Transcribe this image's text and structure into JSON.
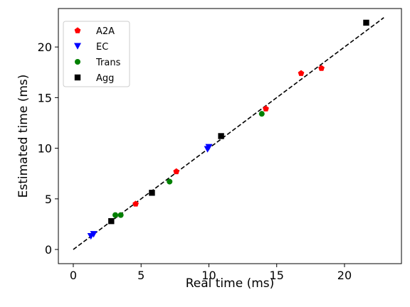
{
  "chart_data": {
    "type": "scatter",
    "title": "",
    "xlabel": "Real time (ms)",
    "ylabel": "Estimated time (ms)",
    "xlim": [
      -1.1,
      24.2
    ],
    "ylim": [
      -1.4,
      23.8
    ],
    "xticks": [
      0,
      5,
      10,
      15,
      20
    ],
    "yticks": [
      0,
      5,
      10,
      15,
      20
    ],
    "grid": false,
    "legend_position": "top-left",
    "reference_line": {
      "style": "dashed",
      "color": "#000000",
      "x": [
        0,
        22.9
      ],
      "y": [
        0,
        22.9
      ]
    },
    "series": [
      {
        "name": "A2A",
        "marker": "pentagon",
        "color": "#ff0000",
        "points": [
          [
            4.6,
            4.5
          ],
          [
            7.6,
            7.7
          ],
          [
            14.2,
            13.9
          ],
          [
            16.8,
            17.4
          ],
          [
            18.3,
            17.9
          ]
        ]
      },
      {
        "name": "EC",
        "marker": "triangle-down",
        "color": "#0000ff",
        "points": [
          [
            1.3,
            1.3
          ],
          [
            1.5,
            1.5
          ],
          [
            9.9,
            9.9
          ],
          [
            10.0,
            10.1
          ]
        ]
      },
      {
        "name": "Trans",
        "marker": "circle",
        "color": "#008000",
        "points": [
          [
            3.1,
            3.4
          ],
          [
            3.5,
            3.4
          ],
          [
            7.1,
            6.7
          ],
          [
            13.9,
            13.4
          ]
        ]
      },
      {
        "name": "Agg",
        "marker": "square",
        "color": "#000000",
        "points": [
          [
            2.8,
            2.8
          ],
          [
            5.8,
            5.6
          ],
          [
            10.9,
            11.2
          ],
          [
            21.6,
            22.4
          ]
        ]
      }
    ]
  }
}
